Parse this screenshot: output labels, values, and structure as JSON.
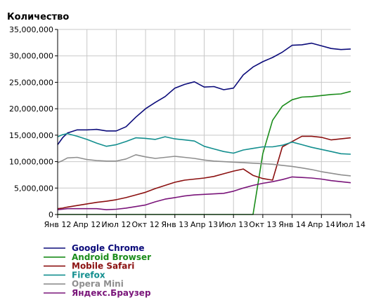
{
  "chart_data": {
    "type": "line",
    "ylabel": "Количество",
    "ylim": [
      0,
      35000000
    ],
    "yticks": [
      0,
      5000000,
      10000000,
      15000000,
      20000000,
      25000000,
      30000000,
      35000000
    ],
    "ytick_labels": [
      "0",
      "5,000,000",
      "10,000,000",
      "15,000,000",
      "20,000,000",
      "25,000,000",
      "30,000,000",
      "35,000,000"
    ],
    "xlim": [
      0,
      30
    ],
    "xticks": [
      0,
      3,
      6,
      9,
      12,
      15,
      18,
      21,
      24,
      27,
      30
    ],
    "xtick_labels": [
      "Янв 12",
      "Апр 12",
      "Июл 12",
      "Окт 12",
      "Янв 13",
      "Апр 13",
      "Июл 13",
      "Окт 13",
      "Янв 14",
      "Апр 14",
      "Июл 14"
    ],
    "grid": true,
    "legend_position": "bottom-left",
    "x": [
      0,
      0.5,
      1,
      2,
      3,
      4,
      5,
      6,
      7,
      8,
      9,
      10,
      11,
      12,
      13,
      14,
      15,
      16,
      17,
      18,
      19,
      20,
      21,
      22,
      23,
      24,
      25,
      26,
      27,
      28,
      29,
      30
    ],
    "series": [
      {
        "name": "Google Chrome",
        "color": "#0b0b7a",
        "values": [
          13200000,
          14500000,
          15400000,
          16000000,
          16000000,
          16100000,
          15800000,
          15800000,
          16600000,
          18400000,
          20000000,
          21200000,
          22300000,
          23900000,
          24600000,
          25100000,
          24100000,
          24200000,
          23600000,
          23900000,
          26400000,
          27900000,
          28900000,
          29700000,
          30700000,
          32000000,
          32100000,
          32400000,
          31900000,
          31400000,
          31200000,
          31300000
        ]
      },
      {
        "name": "Android Browser",
        "color": "#1a8c1a",
        "values": [
          0,
          0,
          0,
          0,
          0,
          0,
          0,
          0,
          0,
          0,
          0,
          0,
          0,
          0,
          0,
          0,
          0,
          0,
          0,
          0,
          0,
          0,
          11500000,
          17800000,
          20500000,
          21700000,
          22200000,
          22300000,
          22500000,
          22700000,
          22800000,
          23300000
        ]
      },
      {
        "name": "Mobile Safari",
        "color": "#8b1010",
        "values": [
          1100000,
          1200000,
          1400000,
          1700000,
          2000000,
          2300000,
          2500000,
          2800000,
          3200000,
          3700000,
          4200000,
          4900000,
          5500000,
          6100000,
          6500000,
          6700000,
          6900000,
          7200000,
          7700000,
          8200000,
          8600000,
          7400000,
          6800000,
          6500000,
          12800000,
          13800000,
          14800000,
          14800000,
          14600000,
          14100000,
          14300000,
          14500000
        ]
      },
      {
        "name": "Firefox",
        "color": "#138f8f",
        "values": [
          14700000,
          15100000,
          15300000,
          14800000,
          14200000,
          13500000,
          12900000,
          13200000,
          13800000,
          14500000,
          14400000,
          14200000,
          14700000,
          14300000,
          14100000,
          13900000,
          12900000,
          12400000,
          11900000,
          11600000,
          12200000,
          12500000,
          12800000,
          12800000,
          13100000,
          13700000,
          13200000,
          12700000,
          12300000,
          11900000,
          11500000,
          11400000
        ]
      },
      {
        "name": "Opera Mini",
        "color": "#8f8f8f",
        "values": [
          9800000,
          10200000,
          10700000,
          10800000,
          10400000,
          10200000,
          10100000,
          10100000,
          10500000,
          11300000,
          10900000,
          10600000,
          10800000,
          11000000,
          10800000,
          10600000,
          10300000,
          10100000,
          10000000,
          9900000,
          9800000,
          9700000,
          9600000,
          9500000,
          9300000,
          9100000,
          8800000,
          8500000,
          8100000,
          7800000,
          7500000,
          7300000
        ]
      },
      {
        "name": "Яндекс.Браузер",
        "color": "#7a157a",
        "values": [
          900000,
          1000000,
          1100000,
          1100000,
          1100000,
          1100000,
          900000,
          1000000,
          1200000,
          1500000,
          1800000,
          2400000,
          2900000,
          3200000,
          3500000,
          3700000,
          3800000,
          3900000,
          4000000,
          4400000,
          5000000,
          5500000,
          5900000,
          6200000,
          6600000,
          7100000,
          7000000,
          6900000,
          6700000,
          6400000,
          6200000,
          6000000
        ]
      }
    ]
  }
}
